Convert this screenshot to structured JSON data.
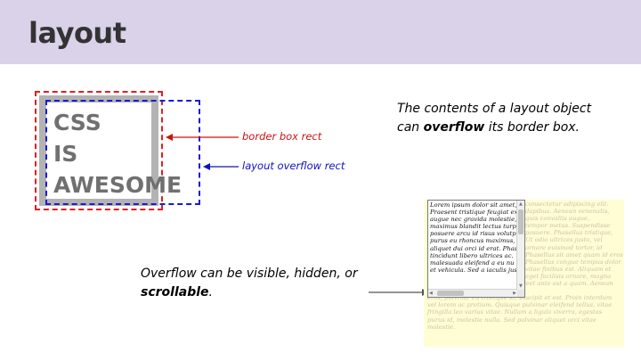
{
  "header": {
    "title": "layout"
  },
  "diagram": {
    "lines": [
      "CSS",
      "IS",
      "AWESOME"
    ],
    "border_label": "border box rect",
    "overflow_label": "layout overflow rect",
    "colors": {
      "border": "#e02020",
      "overflow": "#1a1ad0",
      "box": "#b3b3b3"
    }
  },
  "notes": {
    "contents_line1": "The contents of a layout object",
    "contents_line2_pre": "can ",
    "contents_line2_bold": "overflow",
    "contents_line2_post": " its border box.",
    "overflow_line1": "Overflow can be visible, hidden, or",
    "overflow_line2_bold": "scrollable",
    "overflow_line2_post": "."
  },
  "demo": {
    "box_lines": [
      "Lorem ipsum dolor sit amet,",
      "Praesent tristique feugiat ex",
      "augue nec gravida molestie,",
      "maximus blandit lectus turpi",
      "posuere arcu id risus volutp",
      "purus eu rhoncus maximus,",
      "aliquet dui orci id erat. Phas",
      "tincidunt libero ultrices ac.",
      "malesuada eleifend a eu nu",
      "et vehicula. Sed a iaculis jus"
    ],
    "ghost_lines": [
      "consectetur adipiscing elit.",
      "dapibus. Aenean venenatis,",
      "quis convallis augue,",
      "tempor metus. Suspendisse",
      "posuere. Phasellus tristique,",
      "Ut odio ultrices justo, vel",
      "ornare euismod tortor, id",
      "Phasellus sit amet quam id eros",
      "Phasellus congue tempus dolor",
      "vitae finibus est. Aliquam et",
      "eget facilisis ornare, magna",
      "purus fermentum massa, in laoreet ante est a quam. Aenean odio",
      "eros, pulvinar eu tristique id, suscipit et est. Proin interdum",
      "vel lorem ac pretium. Quisque pulvinar eleifend tellus, vitae",
      "fringilla leo varius vitae. Nullam a ligula viverra, egestas",
      "purus id, molestie nulla. Sed pulvinar aliquet orci vitae",
      "molestie."
    ]
  }
}
